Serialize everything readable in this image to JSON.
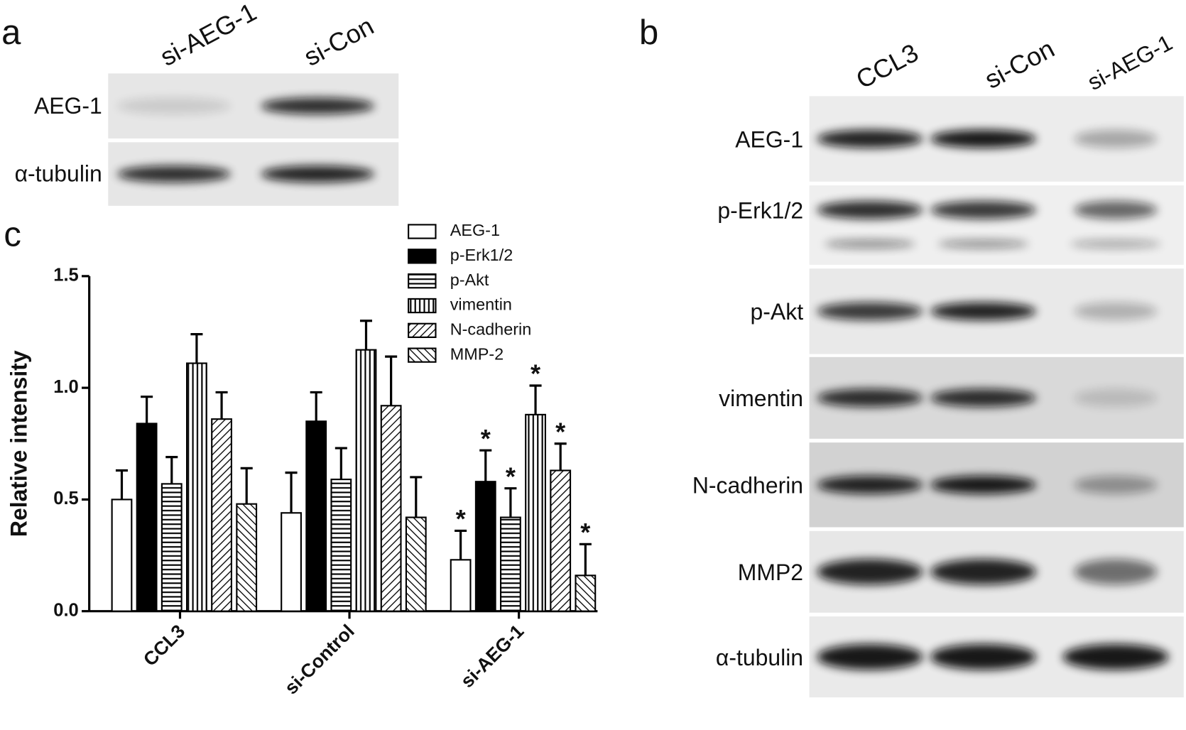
{
  "panel_a": {
    "label": "a",
    "lanes": [
      "si-AEG-1",
      "si-Con"
    ],
    "rows": [
      "AEG-1",
      "α-tubulin"
    ]
  },
  "panel_b": {
    "label": "b",
    "lanes": [
      "CCL3",
      "si-Con",
      "si-AEG-1"
    ],
    "rows": [
      "AEG-1",
      "p-Erk1/2",
      "p-Akt",
      "vimentin",
      "N-cadherin",
      "MMP2",
      "α-tubulin"
    ]
  },
  "chart_data": {
    "type": "bar",
    "panel_label": "c",
    "ylabel": "Relative intensity",
    "categories": [
      "CCL3",
      "si-Control",
      "si-AEG-1"
    ],
    "series": [
      {
        "name": "AEG-1",
        "color": "#ffffff",
        "pattern": "none",
        "values": [
          0.5,
          0.44,
          0.23
        ],
        "errors": [
          0.13,
          0.18,
          0.13
        ]
      },
      {
        "name": "p-Erk1/2",
        "color": "#000000",
        "pattern": "solid",
        "values": [
          0.84,
          0.85,
          0.58
        ],
        "errors": [
          0.12,
          0.13,
          0.14
        ]
      },
      {
        "name": "p-Akt",
        "color": "#000000",
        "pattern": "hlines",
        "values": [
          0.57,
          0.59,
          0.42
        ],
        "errors": [
          0.12,
          0.14,
          0.13
        ]
      },
      {
        "name": "vimentin",
        "color": "#000000",
        "pattern": "vlines",
        "values": [
          1.11,
          1.17,
          0.88
        ],
        "errors": [
          0.13,
          0.13,
          0.13
        ]
      },
      {
        "name": "N-cadherin",
        "color": "#000000",
        "pattern": "diag",
        "values": [
          0.86,
          0.92,
          0.63
        ],
        "errors": [
          0.12,
          0.22,
          0.12
        ]
      },
      {
        "name": "MMP-2",
        "color": "#000000",
        "pattern": "diag2",
        "values": [
          0.48,
          0.42,
          0.16
        ],
        "errors": [
          0.16,
          0.18,
          0.14
        ]
      }
    ],
    "annotations": [
      {
        "text": "*",
        "series": "AEG-1",
        "category": "si-AEG-1"
      },
      {
        "text": "*",
        "series": "p-Erk1/2",
        "category": "si-AEG-1"
      },
      {
        "text": "*",
        "series": "p-Akt",
        "category": "si-AEG-1"
      },
      {
        "text": "*",
        "series": "vimentin",
        "category": "si-AEG-1"
      },
      {
        "text": "*",
        "series": "N-cadherin",
        "category": "si-AEG-1"
      },
      {
        "text": "*",
        "series": "MMP-2",
        "category": "si-AEG-1"
      }
    ],
    "ylim": [
      0,
      1.5
    ],
    "yticks": [
      {
        "value": 0,
        "label": "0.0"
      },
      0.5,
      {
        "value": 1,
        "label": "1.0"
      },
      1.5
    ],
    "legend": "top-right"
  }
}
